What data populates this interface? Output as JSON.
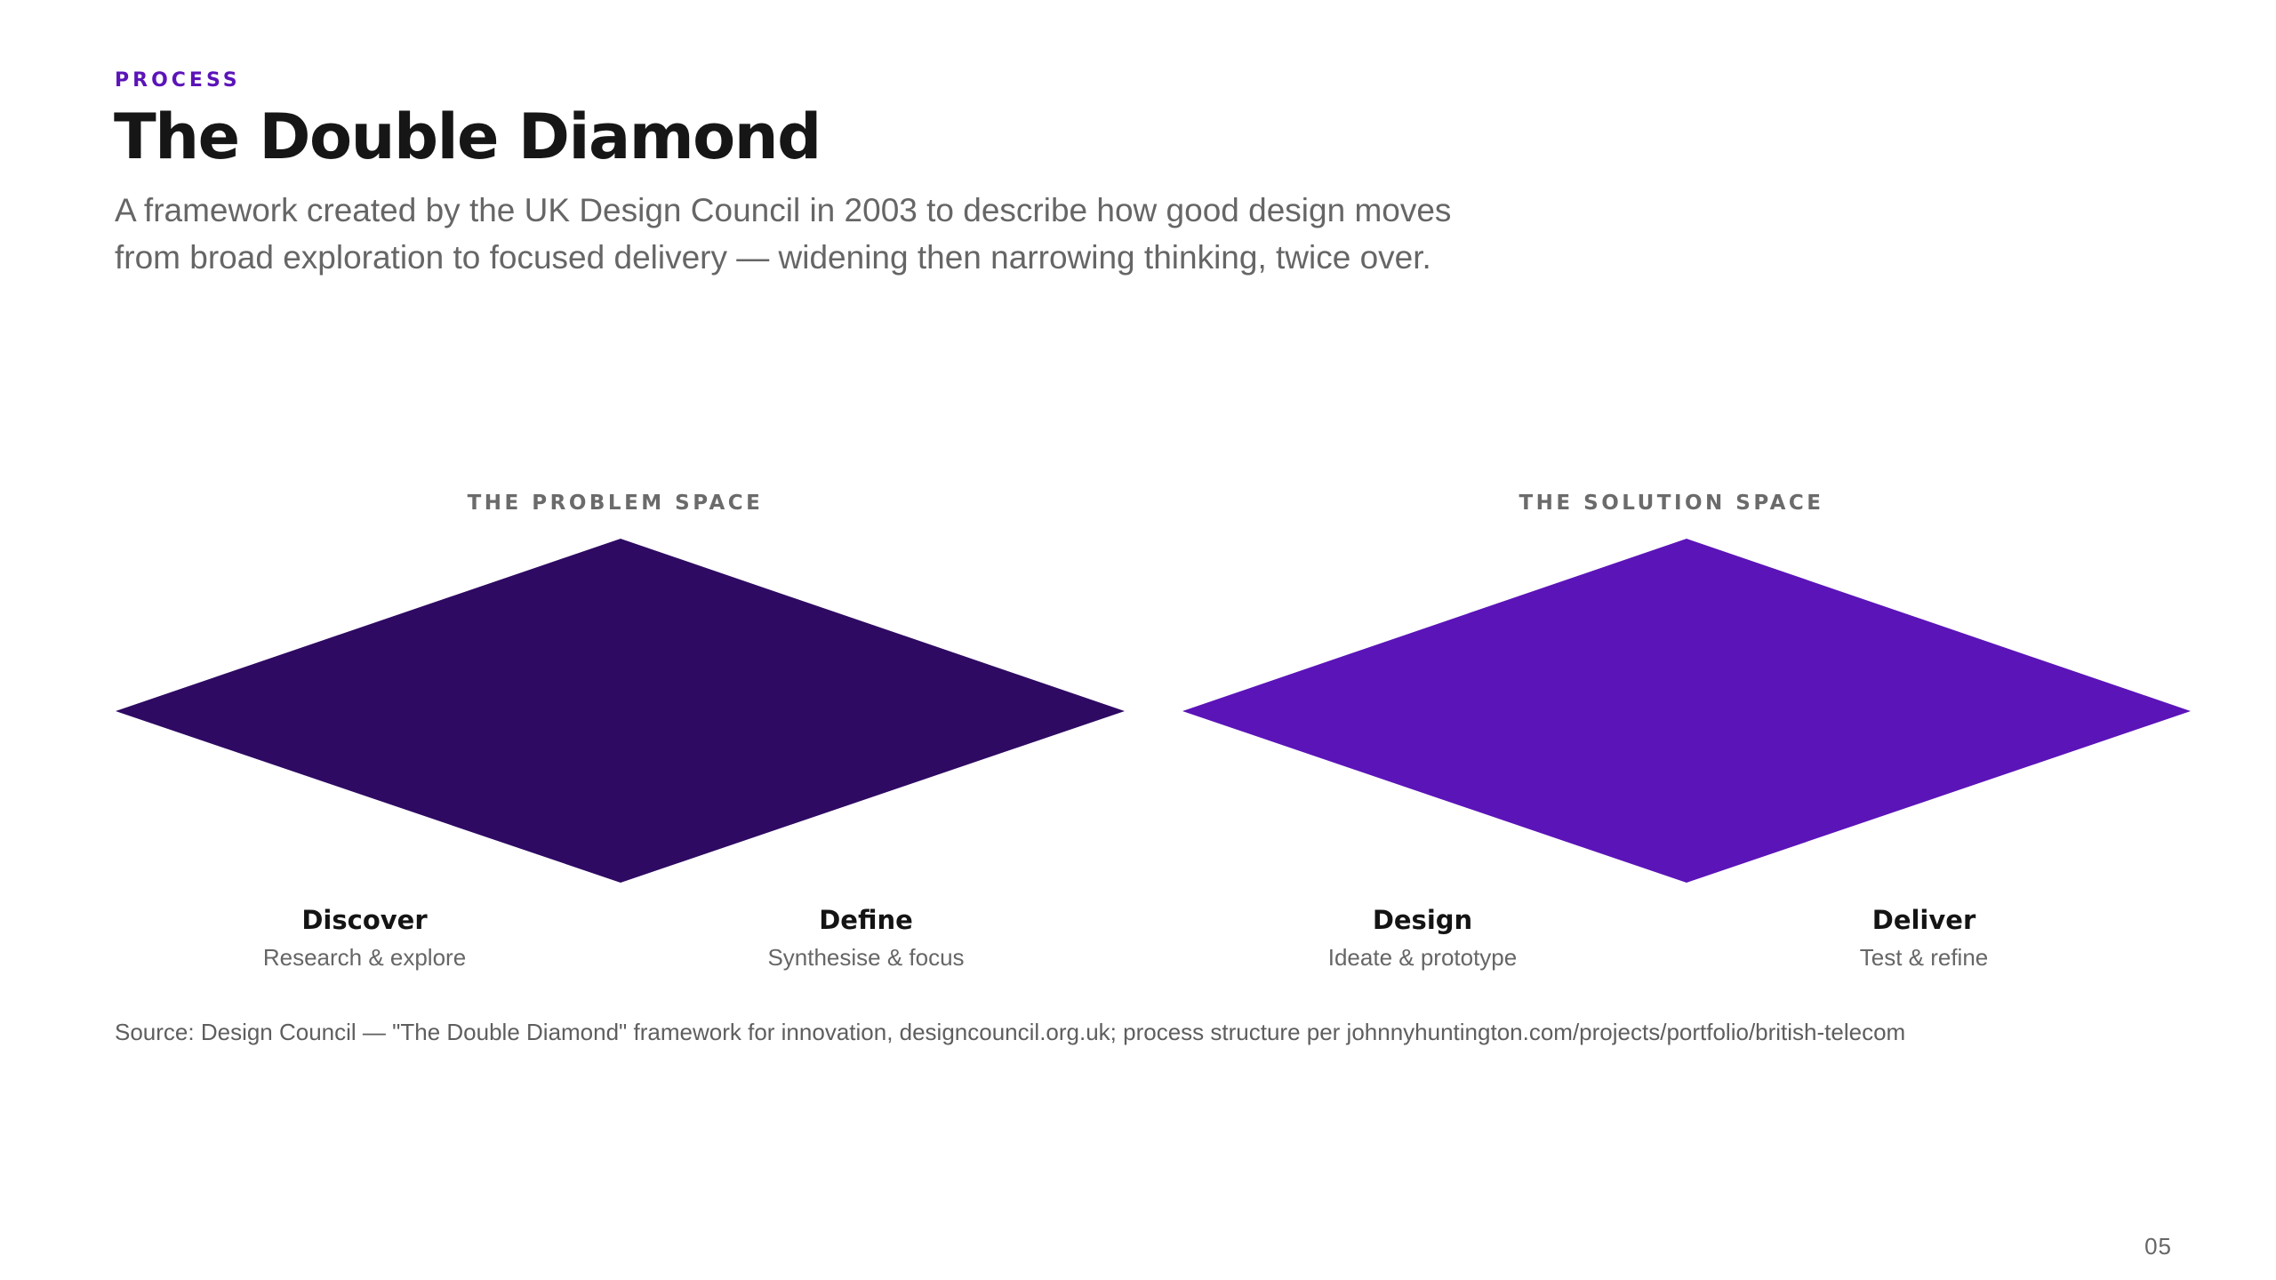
{
  "header": {
    "eyebrow": "PROCESS",
    "title": "The Double Diamond",
    "subtitle": "A framework created by the UK Design Council in 2003 to describe how good design moves from broad exploration to focused delivery — widening then narrowing thinking, twice over."
  },
  "diagram": {
    "spaces": [
      {
        "label": "THE PROBLEM SPACE",
        "color": "#2e0a63"
      },
      {
        "label": "THE SOLUTION SPACE",
        "color": "#5b14b8"
      }
    ],
    "phases": [
      {
        "name": "Discover",
        "description": "Research & explore"
      },
      {
        "name": "Define",
        "description": "Synthesise & focus"
      },
      {
        "name": "Design",
        "description": "Ideate & prototype"
      },
      {
        "name": "Deliver",
        "description": "Test & refine"
      }
    ]
  },
  "footer": {
    "source": "Source: Design Council — \"The Double Diamond\" framework for innovation, designcouncil.org.uk; process structure per johnnyhuntington.com/projects/portfolio/british-telecom",
    "page_number": "05"
  },
  "colors": {
    "accent": "#5b14b8",
    "problem_diamond": "#2e0a63",
    "solution_diamond": "#5b14b8"
  }
}
